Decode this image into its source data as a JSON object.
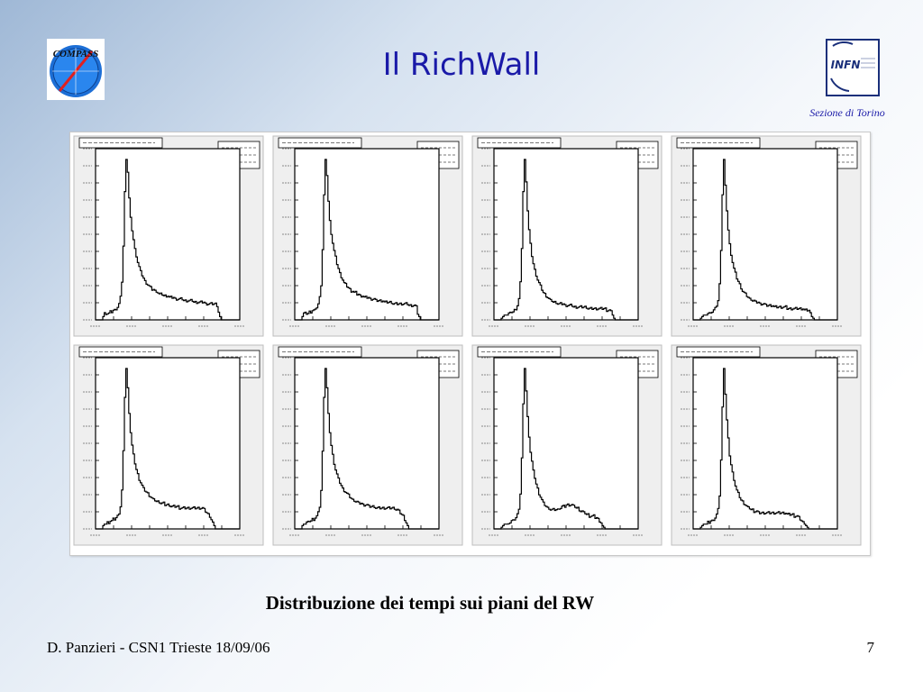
{
  "slide": {
    "title": "Il RichWall",
    "caption": "Distribuzione dei tempi sui piani del RW",
    "footer_left": "D. Panzieri - CSN1 Trieste 18/09/06",
    "page_number": "7"
  },
  "logos": {
    "left_text": "COMPASS",
    "right_text": "INFN",
    "right_subtitle": "Sezione di Torino"
  },
  "colors": {
    "title": "#1a1aa8",
    "histogram_line": "#000000",
    "pad_fill": "#ffffff",
    "pad_frame_fill": "#efefef"
  },
  "chart_data": {
    "type": "line",
    "layout": "grid 2 rows x 4 columns",
    "note_legible": "Axis tick labels and stats boxes are too small to read; histograms show a sharp peak near the start followed by an exponential-like tail.",
    "x_range": [
      0,
      100
    ],
    "panels": [
      {
        "y": [
          0,
          0,
          0,
          0,
          0,
          2,
          4,
          4,
          4,
          4,
          5,
          5,
          6,
          6,
          7,
          8,
          10,
          14,
          24,
          46,
          80,
          100,
          92,
          76,
          64,
          56,
          50,
          44,
          40,
          36,
          33,
          30,
          28,
          26,
          24,
          23,
          22,
          21,
          20,
          19,
          19,
          18,
          18,
          17,
          16,
          16,
          16,
          15,
          15,
          15,
          15,
          14,
          14,
          14,
          14,
          13,
          13,
          13,
          13,
          13,
          13,
          12,
          12,
          12,
          12,
          12,
          12,
          12,
          11,
          11,
          11,
          11,
          11,
          11,
          11,
          11,
          10,
          10,
          10,
          10,
          10,
          10,
          10,
          10,
          9,
          5,
          2,
          0,
          0,
          0,
          0,
          0,
          0,
          0,
          0,
          0,
          0,
          0,
          0,
          0
        ]
      },
      {
        "y": [
          0,
          0,
          0,
          0,
          0,
          2,
          4,
          4,
          4,
          4,
          5,
          5,
          6,
          6,
          6,
          8,
          10,
          14,
          22,
          44,
          78,
          100,
          90,
          74,
          62,
          54,
          48,
          43,
          39,
          35,
          32,
          29,
          27,
          25,
          23,
          22,
          21,
          20,
          19,
          18,
          18,
          17,
          17,
          16,
          16,
          15,
          15,
          15,
          14,
          14,
          14,
          14,
          13,
          13,
          13,
          13,
          12,
          12,
          12,
          12,
          12,
          12,
          11,
          11,
          11,
          11,
          11,
          11,
          10,
          10,
          10,
          10,
          10,
          10,
          10,
          10,
          10,
          10,
          10,
          9,
          9,
          9,
          9,
          9,
          8,
          4,
          2,
          0,
          0,
          0,
          0,
          0,
          0,
          0,
          0,
          0,
          0,
          0,
          0,
          0
        ]
      },
      {
        "y": [
          0,
          0,
          0,
          0,
          0,
          1,
          2,
          3,
          3,
          3,
          4,
          4,
          5,
          5,
          6,
          7,
          9,
          13,
          23,
          45,
          80,
          100,
          86,
          68,
          56,
          47,
          40,
          35,
          31,
          28,
          25,
          23,
          21,
          19,
          17,
          16,
          15,
          14,
          13,
          12,
          12,
          11,
          11,
          11,
          10,
          10,
          10,
          10,
          10,
          9,
          9,
          9,
          9,
          9,
          9,
          8,
          8,
          8,
          8,
          8,
          8,
          8,
          8,
          8,
          8,
          7,
          7,
          7,
          7,
          7,
          7,
          7,
          7,
          7,
          7,
          7,
          7,
          7,
          6,
          6,
          6,
          5,
          3,
          1,
          0,
          0,
          0,
          0,
          0,
          0,
          0,
          0,
          0,
          0,
          0,
          0,
          0,
          0,
          0,
          0
        ]
      },
      {
        "y": [
          0,
          0,
          0,
          0,
          0,
          1,
          2,
          3,
          3,
          3,
          4,
          4,
          5,
          5,
          6,
          7,
          9,
          12,
          22,
          44,
          78,
          100,
          84,
          68,
          56,
          47,
          41,
          36,
          32,
          29,
          26,
          24,
          22,
          20,
          18,
          17,
          16,
          15,
          14,
          13,
          13,
          12,
          12,
          11,
          11,
          11,
          10,
          10,
          10,
          10,
          9,
          9,
          9,
          9,
          9,
          9,
          8,
          8,
          8,
          8,
          8,
          8,
          8,
          8,
          8,
          7,
          7,
          7,
          7,
          7,
          7,
          7,
          7,
          7,
          7,
          7,
          7,
          6,
          6,
          6,
          6,
          4,
          2,
          1,
          0,
          0,
          0,
          0,
          0,
          0,
          0,
          0,
          0,
          0,
          0,
          0,
          0,
          0,
          0,
          0
        ]
      },
      {
        "y": [
          0,
          0,
          0,
          0,
          0,
          2,
          3,
          3,
          4,
          4,
          5,
          5,
          6,
          6,
          7,
          8,
          10,
          14,
          24,
          48,
          82,
          100,
          88,
          72,
          60,
          52,
          46,
          41,
          37,
          34,
          31,
          29,
          27,
          25,
          24,
          23,
          22,
          21,
          20,
          19,
          18,
          18,
          17,
          17,
          17,
          16,
          16,
          16,
          15,
          15,
          15,
          15,
          14,
          14,
          14,
          14,
          14,
          14,
          13,
          13,
          13,
          13,
          13,
          13,
          13,
          13,
          13,
          13,
          13,
          13,
          13,
          13,
          13,
          13,
          13,
          12,
          11,
          10,
          9,
          8,
          6,
          4,
          2,
          0,
          0,
          0,
          0,
          0,
          0,
          0,
          0,
          0,
          0,
          0,
          0,
          0,
          0,
          0,
          0,
          0
        ]
      },
      {
        "y": [
          0,
          0,
          0,
          0,
          0,
          2,
          3,
          3,
          4,
          4,
          5,
          5,
          6,
          6,
          7,
          8,
          10,
          14,
          24,
          48,
          82,
          100,
          88,
          72,
          60,
          52,
          46,
          41,
          37,
          34,
          31,
          29,
          27,
          25,
          24,
          23,
          22,
          21,
          20,
          19,
          18,
          18,
          17,
          17,
          16,
          16,
          16,
          15,
          15,
          15,
          15,
          14,
          14,
          14,
          14,
          14,
          13,
          13,
          13,
          13,
          13,
          13,
          13,
          13,
          13,
          13,
          13,
          13,
          13,
          13,
          12,
          12,
          11,
          10,
          9,
          8,
          6,
          4,
          2,
          0,
          0,
          0,
          0,
          0,
          0,
          0,
          0,
          0,
          0,
          0,
          0,
          0,
          0,
          0,
          0,
          0,
          0,
          0,
          0,
          0
        ]
      },
      {
        "y": [
          0,
          0,
          0,
          0,
          0,
          1,
          2,
          3,
          3,
          3,
          4,
          4,
          5,
          5,
          6,
          7,
          9,
          13,
          22,
          44,
          78,
          100,
          86,
          70,
          58,
          48,
          42,
          36,
          32,
          28,
          25,
          22,
          20,
          18,
          16,
          15,
          14,
          13,
          13,
          12,
          12,
          12,
          12,
          12,
          12,
          13,
          13,
          14,
          14,
          14,
          15,
          15,
          15,
          15,
          15,
          14,
          14,
          13,
          13,
          12,
          11,
          11,
          10,
          10,
          9,
          9,
          8,
          8,
          8,
          8,
          7,
          7,
          6,
          5,
          4,
          2,
          1,
          0,
          0,
          0,
          0,
          0,
          0,
          0,
          0,
          0,
          0,
          0,
          0,
          0,
          0,
          0,
          0,
          0,
          0,
          0,
          0,
          0,
          0,
          0
        ]
      },
      {
        "y": [
          0,
          0,
          0,
          0,
          0,
          1,
          2,
          3,
          3,
          3,
          4,
          4,
          5,
          5,
          6,
          7,
          9,
          12,
          21,
          43,
          76,
          100,
          84,
          68,
          56,
          46,
          40,
          35,
          31,
          27,
          24,
          22,
          20,
          18,
          17,
          16,
          15,
          14,
          13,
          13,
          12,
          12,
          11,
          11,
          11,
          10,
          10,
          10,
          10,
          10,
          10,
          10,
          10,
          10,
          10,
          10,
          10,
          10,
          10,
          10,
          10,
          10,
          10,
          10,
          10,
          9,
          9,
          9,
          9,
          9,
          8,
          8,
          8,
          7,
          6,
          5,
          4,
          3,
          2,
          1,
          0,
          0,
          0,
          0,
          0,
          0,
          0,
          0,
          0,
          0,
          0,
          0,
          0,
          0,
          0,
          0,
          0,
          0,
          0,
          0
        ]
      }
    ]
  }
}
